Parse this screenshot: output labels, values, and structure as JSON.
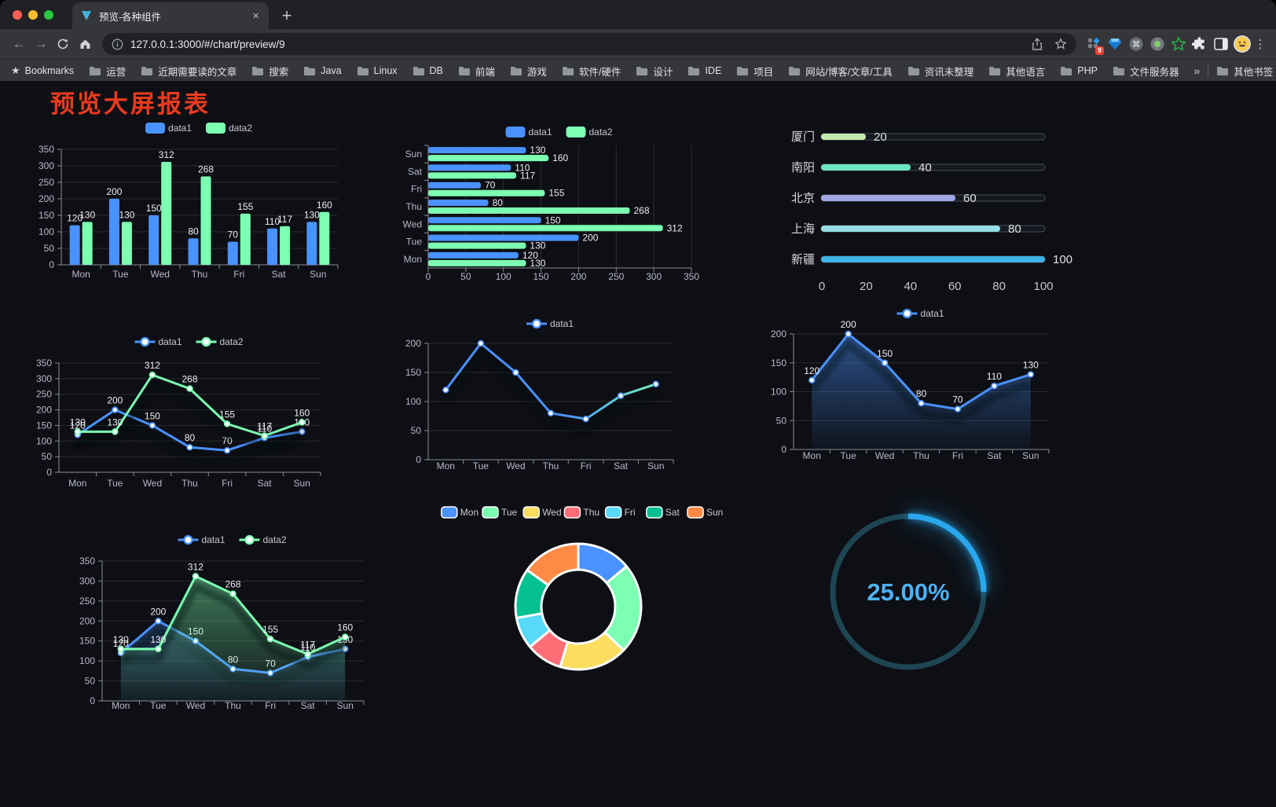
{
  "browser": {
    "tab_title": "预览-各种组件",
    "tab_close_glyph": "×",
    "new_tab_glyph": "+",
    "url": "127.0.0.1:3000/#/chart/preview/9",
    "extension_badge": "9",
    "bookmarks_label": "Bookmarks",
    "bookmarks": [
      "运营",
      "近期需要读的文章",
      "搜索",
      "Java",
      "Linux",
      "DB",
      "前端",
      "游戏",
      "软件/硬件",
      "设计",
      "IDE",
      "项目",
      "网站/博客/文章/工具",
      "资讯未整理",
      "其他语言",
      "PHP",
      "文件服务器"
    ],
    "overflow_glyph": "»",
    "other_bookmarks": "其他书签"
  },
  "page": {
    "title": "预览大屏报表",
    "title_color": "#e93b1f",
    "background": "#0d0f14"
  },
  "palette": {
    "data1": "#4992ff",
    "data2": "#7cffb2"
  },
  "chart_data": [
    {
      "type": "bar",
      "categories": [
        "Mon",
        "Tue",
        "Wed",
        "Thu",
        "Fri",
        "Sat",
        "Sun"
      ],
      "series": [
        {
          "name": "data1",
          "color": "#4992ff",
          "values": [
            120,
            200,
            150,
            80,
            70,
            110,
            130
          ]
        },
        {
          "name": "data2",
          "color": "#7cffb2",
          "values": [
            130,
            130,
            312,
            268,
            155,
            117,
            160
          ]
        }
      ],
      "ylim": [
        0,
        350
      ],
      "yticks": [
        0,
        50,
        100,
        150,
        200,
        250,
        300,
        350
      ],
      "legend_position": "top",
      "grid": true,
      "show_point_labels": true
    },
    {
      "type": "hbar",
      "categories": [
        "Mon",
        "Tue",
        "Wed",
        "Thu",
        "Fri",
        "Sat",
        "Sun"
      ],
      "category_order_top_to_bottom": [
        "Sun",
        "Sat",
        "Fri",
        "Thu",
        "Wed",
        "Tue",
        "Mon"
      ],
      "series": [
        {
          "name": "data1",
          "color": "#4992ff",
          "values": [
            120,
            200,
            150,
            80,
            70,
            110,
            130
          ]
        },
        {
          "name": "data2",
          "color": "#7cffb2",
          "values": [
            130,
            130,
            312,
            268,
            155,
            117,
            160
          ]
        }
      ],
      "xlim": [
        0,
        350
      ],
      "xticks": [
        0,
        50,
        100,
        150,
        200,
        250,
        300,
        350
      ],
      "legend_position": "top",
      "grid": true,
      "show_point_labels": true
    },
    {
      "type": "progress-bars",
      "xlim": [
        0,
        100
      ],
      "xticks": [
        0,
        20,
        40,
        60,
        80,
        100
      ],
      "rows": [
        {
          "label": "厦门",
          "value": 20,
          "color": "#c4ebad"
        },
        {
          "label": "南阳",
          "value": 40,
          "color": "#6be6c1"
        },
        {
          "label": "北京",
          "value": 60,
          "color": "#a0a7e6"
        },
        {
          "label": "上海",
          "value": 80,
          "color": "#96dee8"
        },
        {
          "label": "新疆",
          "value": 100,
          "color": "#3fb1e3"
        }
      ]
    },
    {
      "type": "line",
      "categories": [
        "Mon",
        "Tue",
        "Wed",
        "Thu",
        "Fri",
        "Sat",
        "Sun"
      ],
      "series": [
        {
          "name": "data1",
          "color": "#4992ff",
          "values": [
            120,
            200,
            150,
            80,
            70,
            110,
            130
          ]
        },
        {
          "name": "data2",
          "color": "#7cffb2",
          "values": [
            130,
            130,
            312,
            268,
            155,
            117,
            160
          ]
        }
      ],
      "ylim": [
        0,
        350
      ],
      "yticks": [
        0,
        50,
        100,
        150,
        200,
        250,
        300,
        350
      ],
      "legend_position": "top",
      "show_point_labels": true
    },
    {
      "type": "line",
      "categories": [
        "Mon",
        "Tue",
        "Wed",
        "Thu",
        "Fri",
        "Sat",
        "Sun"
      ],
      "series": [
        {
          "name": "data1",
          "color": "#4992ff",
          "gradient": [
            "#4992ff",
            "#7cffb2"
          ],
          "values": [
            120,
            200,
            150,
            80,
            70,
            110,
            130
          ]
        }
      ],
      "ylim": [
        0,
        200
      ],
      "yticks": [
        0,
        50,
        100,
        150,
        200
      ],
      "legend_position": "top",
      "show_point_labels": false
    },
    {
      "type": "area",
      "categories": [
        "Mon",
        "Tue",
        "Wed",
        "Thu",
        "Fri",
        "Sat",
        "Sun"
      ],
      "series": [
        {
          "name": "data1",
          "color": "#4992ff",
          "values": [
            120,
            200,
            150,
            80,
            70,
            110,
            130
          ]
        }
      ],
      "ylim": [
        0,
        200
      ],
      "yticks": [
        0,
        50,
        100,
        150,
        200
      ],
      "legend_position": "top",
      "show_point_labels": true
    },
    {
      "type": "area",
      "categories": [
        "Mon",
        "Tue",
        "Wed",
        "Thu",
        "Fri",
        "Sat",
        "Sun"
      ],
      "series": [
        {
          "name": "data1",
          "color": "#4992ff",
          "values": [
            120,
            200,
            150,
            80,
            70,
            110,
            130
          ]
        },
        {
          "name": "data2",
          "color": "#7cffb2",
          "values": [
            130,
            130,
            312,
            268,
            155,
            117,
            160
          ]
        }
      ],
      "ylim": [
        0,
        350
      ],
      "yticks": [
        0,
        50,
        100,
        150,
        200,
        250,
        300,
        350
      ],
      "legend_position": "top",
      "show_point_labels": true
    },
    {
      "type": "pie",
      "donut": true,
      "legend_position": "top",
      "slices": [
        {
          "label": "Mon",
          "value": 120,
          "color": "#4992ff"
        },
        {
          "label": "Tue",
          "value": 200,
          "color": "#7cffb2"
        },
        {
          "label": "Wed",
          "value": 150,
          "color": "#fddd60"
        },
        {
          "label": "Thu",
          "value": 80,
          "color": "#ff6e76"
        },
        {
          "label": "Fri",
          "value": 70,
          "color": "#58d9f9"
        },
        {
          "label": "Sat",
          "value": 110,
          "color": "#05c091"
        },
        {
          "label": "Sun",
          "value": 130,
          "color": "#ff8a45"
        }
      ]
    },
    {
      "type": "gauge",
      "value": 25,
      "max": 100,
      "display": "25.00%",
      "arc_color": "#2aa7ee",
      "track_color": "#1e4552",
      "text_color": "#4db2f4"
    }
  ]
}
